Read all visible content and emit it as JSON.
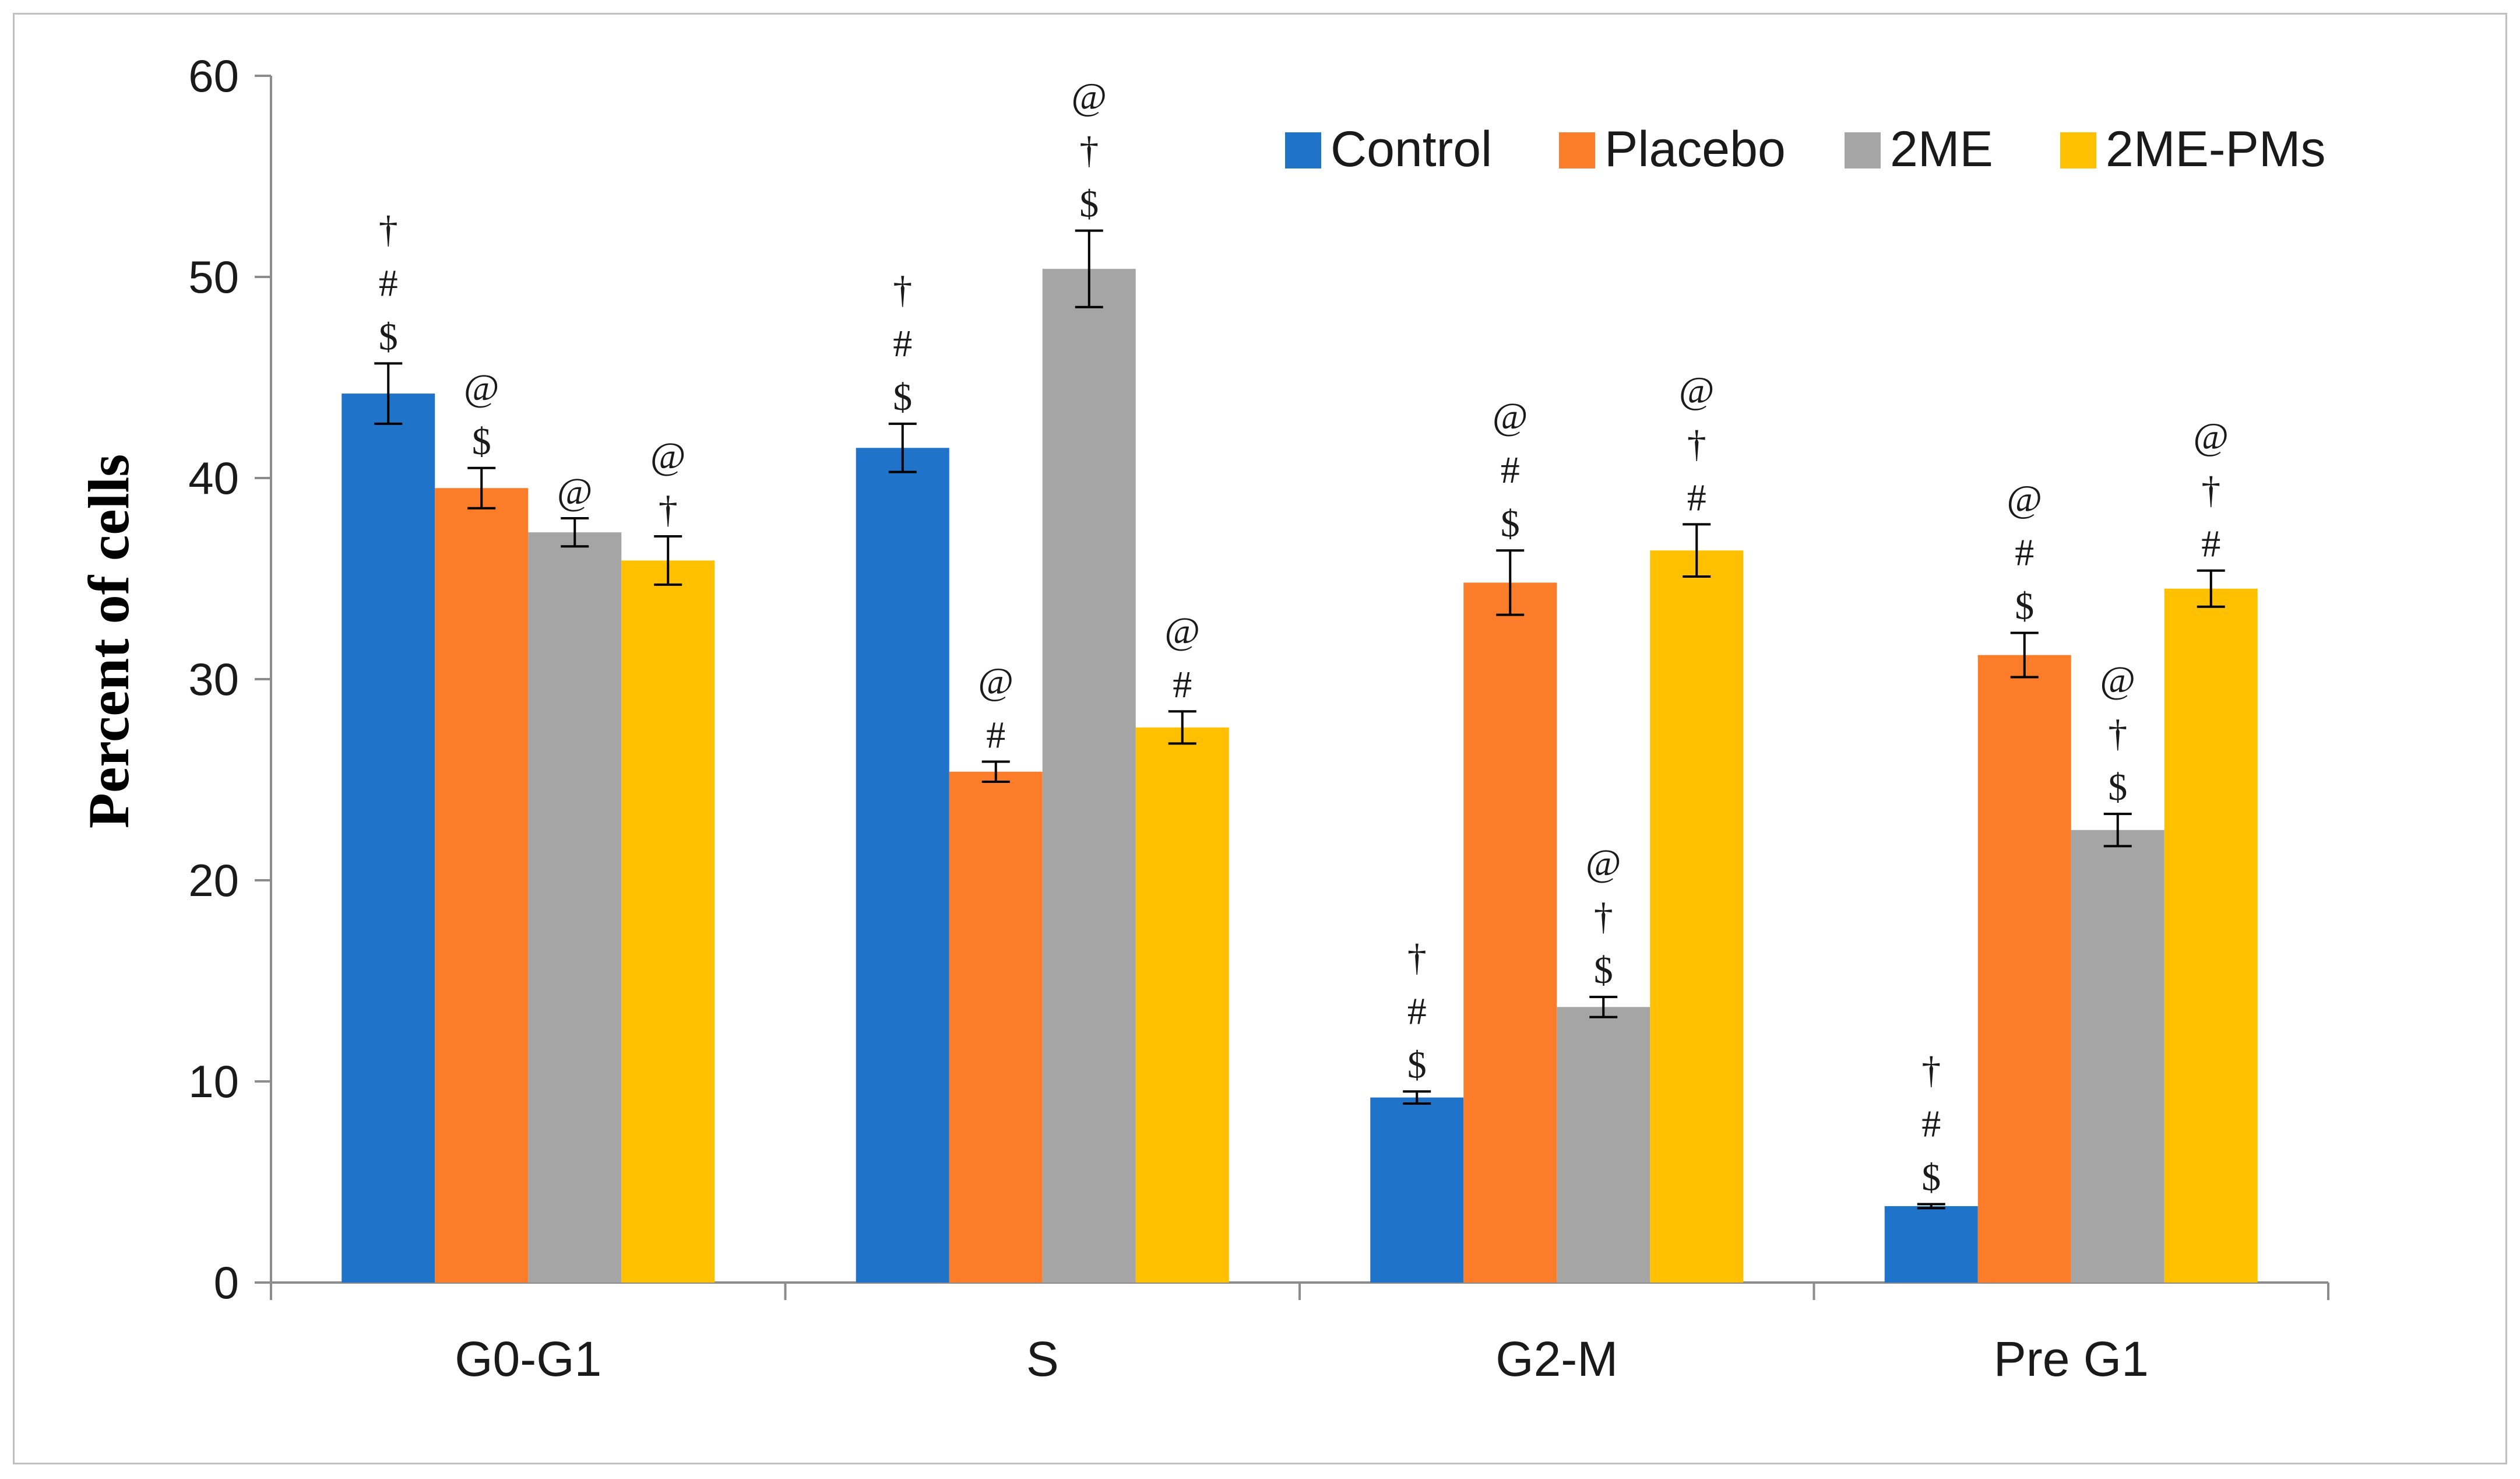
{
  "chart_data": {
    "type": "bar",
    "title": "",
    "xlabel": "",
    "ylabel": "Percent of cells",
    "ylim": [
      0,
      60
    ],
    "yticks": [
      "0",
      "10",
      "20",
      "30",
      "40",
      "50",
      "60"
    ],
    "categories": [
      "G0-G1",
      "S",
      "G2-M",
      "Pre G1"
    ],
    "legend_position": "top-right",
    "series": [
      {
        "name": "Control",
        "color": "#1f73c8",
        "values": [
          44.2,
          41.5,
          9.2,
          3.8
        ],
        "errors": [
          1.5,
          1.2,
          0.3,
          0.1
        ],
        "marks": [
          [
            "†",
            "#",
            "$"
          ],
          [
            "†",
            "#",
            "$"
          ],
          [
            "†",
            "#",
            "$"
          ],
          [
            "†",
            "#",
            "$"
          ]
        ]
      },
      {
        "name": "Placebo",
        "color": "#fb7d2a",
        "values": [
          39.5,
          25.4,
          34.8,
          31.2
        ],
        "errors": [
          1.0,
          0.5,
          1.6,
          1.1
        ],
        "marks": [
          [
            "@",
            "$"
          ],
          [
            "@",
            "#"
          ],
          [
            "@",
            "#",
            "$"
          ],
          [
            "@",
            "#",
            "$"
          ]
        ]
      },
      {
        "name": "2ME",
        "color": "#a5a5a5",
        "values": [
          37.3,
          50.4,
          13.7,
          22.5
        ],
        "errors": [
          0.7,
          1.9,
          0.5,
          0.8
        ],
        "marks": [
          [
            "@"
          ],
          [
            "@",
            "†",
            "$"
          ],
          [
            "@",
            "†",
            "$"
          ],
          [
            "@",
            "†",
            "$"
          ]
        ]
      },
      {
        "name": "2ME-PMs",
        "color": "#ffc000",
        "values": [
          35.9,
          27.6,
          36.4,
          34.5
        ],
        "errors": [
          1.2,
          0.8,
          1.3,
          0.9
        ],
        "marks": [
          [
            "@",
            "†"
          ],
          [
            "@",
            "#"
          ],
          [
            "@",
            "†",
            "#"
          ],
          [
            "@",
            "†",
            "#"
          ]
        ]
      }
    ]
  }
}
